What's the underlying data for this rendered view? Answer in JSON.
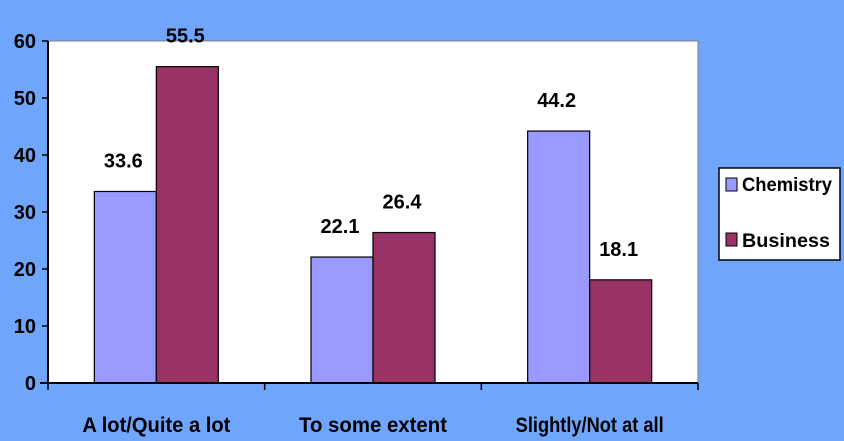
{
  "chart_data": {
    "type": "bar",
    "title": "",
    "xlabel": "",
    "ylabel": "",
    "categories": [
      "A lot/Quite a lot",
      "To some extent",
      "Slightly/Not at all"
    ],
    "series": [
      {
        "name": "Chemistry",
        "values": [
          33.6,
          22.1,
          44.2
        ],
        "color": "#9999ff",
        "labels": [
          "33.6",
          "22.1",
          "44.2"
        ]
      },
      {
        "name": "Business",
        "values": [
          55.5,
          26.4,
          18.1
        ],
        "color": "#993366",
        "labels": [
          "55.5",
          "26.4",
          "18.1"
        ]
      }
    ],
    "ylim": [
      0,
      60
    ],
    "yticks": [
      "0",
      "10",
      "20",
      "30",
      "40",
      "50",
      "60"
    ],
    "grid": false,
    "legend": "right",
    "plot_background": "#ffffff",
    "page_background": "#6fa5fb"
  }
}
